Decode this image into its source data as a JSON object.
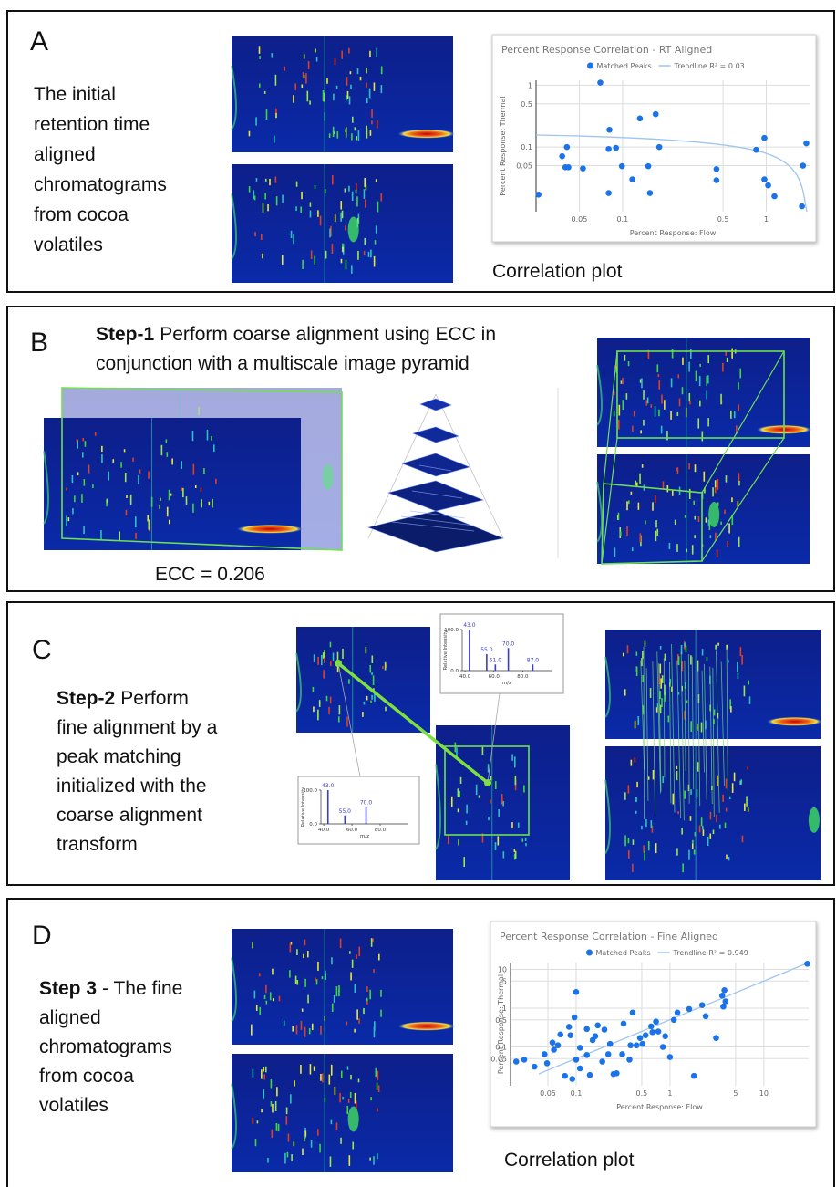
{
  "panels": [
    {
      "label": "A",
      "lines": [
        "The initial",
        "retention time",
        "aligned",
        "chromatograms",
        "from cocoa",
        "volatiles"
      ],
      "caption": "Correlation plot",
      "chart": {
        "type": "scatter",
        "title": "Percent Response Correlation - RT Aligned",
        "series": [
          {
            "name": "Matched Peaks",
            "color": "#1a73e8",
            "x": [
              0.026,
              0.038,
              0.04,
              0.041,
              0.042,
              0.053,
              0.07,
              0.08,
              0.081,
              0.08,
              0.09,
              0.099,
              0.117,
              0.132,
              0.151,
              0.155,
              0.17,
              0.18,
              0.45,
              0.45,
              0.85,
              0.97,
              0.97,
              1.03,
              1.14,
              1.8,
              1.9,
              1.77
            ],
            "values": [
              0.017,
              0.071,
              0.047,
              0.1,
              0.047,
              0.045,
              1.1,
              0.093,
              0.19,
              0.018,
              0.097,
              0.049,
              0.03,
              0.29,
              0.049,
              0.018,
              0.34,
              0.1,
              0.044,
              0.029,
              0.09,
              0.14,
              0.03,
              0.024,
              0.016,
              0.05,
              0.115,
              0.011
            ]
          }
        ],
        "trendline": {
          "name": "Trendline R² = 0.03",
          "color": "#9fc5f0"
        },
        "x_label": "Percent Response: Flow",
        "y_label": "Percent Response: Thermal",
        "xlim": [
          0.025,
          2
        ],
        "ylim": [
          0.009,
          1.2
        ],
        "xticks": [
          0.05,
          0.1,
          0.5,
          1
        ],
        "yticks": [
          0.05,
          0.1,
          0.5,
          1
        ],
        "log_x": true,
        "log_y": true,
        "grid": true
      }
    },
    {
      "label": "B",
      "step": "Step-1",
      "lines": [
        "Perform coarse alignment using ECC in",
        "conjunction with a multiscale image pyramid"
      ],
      "caption": "ECC = 0.206"
    },
    {
      "label": "C",
      "step": "Step-2",
      "lines": [
        "Perform",
        "fine alignment by a",
        "peak matching",
        "initialized with the",
        "coarse alignment",
        "transform"
      ],
      "spectra": [
        {
          "type": "bar",
          "x": [
            43,
            55,
            61,
            70,
            87
          ],
          "values": [
            100,
            40,
            15,
            55,
            15
          ],
          "x_labels": [
            "43.0",
            "55.0",
            "61.0",
            "70.0",
            "87.0"
          ],
          "color": "#3b3bd0",
          "x_label": "m/z",
          "y_label": "Relative Intensity",
          "xlim": [
            38,
            100
          ],
          "ylim": [
            0,
            100
          ],
          "xticks": [
            {
              "value": 40,
              "label": "40.0"
            },
            {
              "value": 60,
              "label": "60.0"
            },
            {
              "value": 80,
              "label": "80.0"
            }
          ],
          "yticks": [
            {
              "value": 0,
              "label": "0.0"
            },
            {
              "value": 100,
              "label": "100.0"
            }
          ]
        },
        {
          "type": "bar",
          "x": [
            43,
            55,
            70
          ],
          "values": [
            100,
            25,
            50
          ],
          "x_labels": [
            "43.0",
            "55.0",
            "70.0"
          ],
          "color": "#3b3bd0",
          "x_label": "m/z",
          "y_label": "Relative Intensity",
          "xlim": [
            38,
            100
          ],
          "ylim": [
            0,
            100
          ],
          "xticks": [
            {
              "value": 40,
              "label": "40.0"
            },
            {
              "value": 60,
              "label": "60.0"
            },
            {
              "value": 80,
              "label": "80.0"
            }
          ],
          "yticks": [
            {
              "value": 0,
              "label": "0.0"
            },
            {
              "value": 100,
              "label": "100.0"
            }
          ]
        }
      ]
    },
    {
      "label": "D",
      "step": "Step 3",
      "lines": [
        "- The fine",
        "aligned",
        "chromatograms",
        "from cocoa",
        "volatiles"
      ],
      "caption": "Correlation plot",
      "chart": {
        "type": "scatter",
        "title": "Percent Response Correlation - Fine Aligned",
        "series": [
          {
            "name": "Matched Peaks",
            "color": "#1a73e8",
            "x": [
              0.023,
              0.028,
              0.036,
              0.046,
              0.049,
              0.056,
              0.058,
              0.064,
              0.068,
              0.076,
              0.084,
              0.087,
              0.091,
              0.096,
              0.1,
              0.11,
              0.11,
              0.13,
              0.13,
              0.14,
              0.15,
              0.16,
              0.17,
              0.19,
              0.2,
              0.22,
              0.23,
              0.25,
              0.27,
              0.31,
              0.32,
              0.37,
              0.38,
              0.4,
              0.44,
              0.48,
              0.51,
              0.55,
              0.63,
              0.65,
              0.71,
              0.75,
              0.84,
              0.89,
              1.0,
              1.1,
              1.2,
              1.6,
              1.8,
              2.2,
              2.4,
              3.1,
              3.6,
              3.7,
              3.8,
              3.9,
              0.1,
              29
            ],
            "values": [
              0.042,
              0.047,
              0.031,
              0.065,
              0.038,
              0.13,
              0.085,
              0.11,
              0.21,
              0.018,
              0.33,
              0.2,
              0.015,
              0.58,
              0.047,
              0.028,
              0.095,
              0.29,
              0.062,
              0.019,
              0.15,
              0.19,
              0.36,
              0.042,
              0.28,
              0.065,
              0.12,
              0.02,
              0.021,
              0.065,
              0.4,
              0.047,
              0.11,
              0.77,
              0.11,
              0.17,
              0.12,
              0.2,
              0.34,
              0.24,
              0.45,
              0.25,
              0.1,
              0.19,
              0.055,
              0.5,
              0.77,
              0.95,
              0.018,
              1.2,
              0.62,
              0.17,
              2.1,
              1.1,
              2.9,
              1.5,
              2.6,
              14
            ]
          }
        ],
        "trendline": {
          "name": "Trendline R² = 0.949",
          "color": "#9fc5f0"
        },
        "x_label": "Percent Response: Flow",
        "y_label": "Percent Response: Thermal",
        "xlim": [
          0.02,
          30
        ],
        "ylim": [
          0.01,
          15
        ],
        "xticks": [
          0.05,
          0.1,
          0.5,
          1,
          5,
          10
        ],
        "yticks": [
          0.05,
          0.1,
          0.5,
          1,
          5,
          10
        ],
        "log_x": true,
        "log_y": true,
        "grid": true
      }
    }
  ]
}
